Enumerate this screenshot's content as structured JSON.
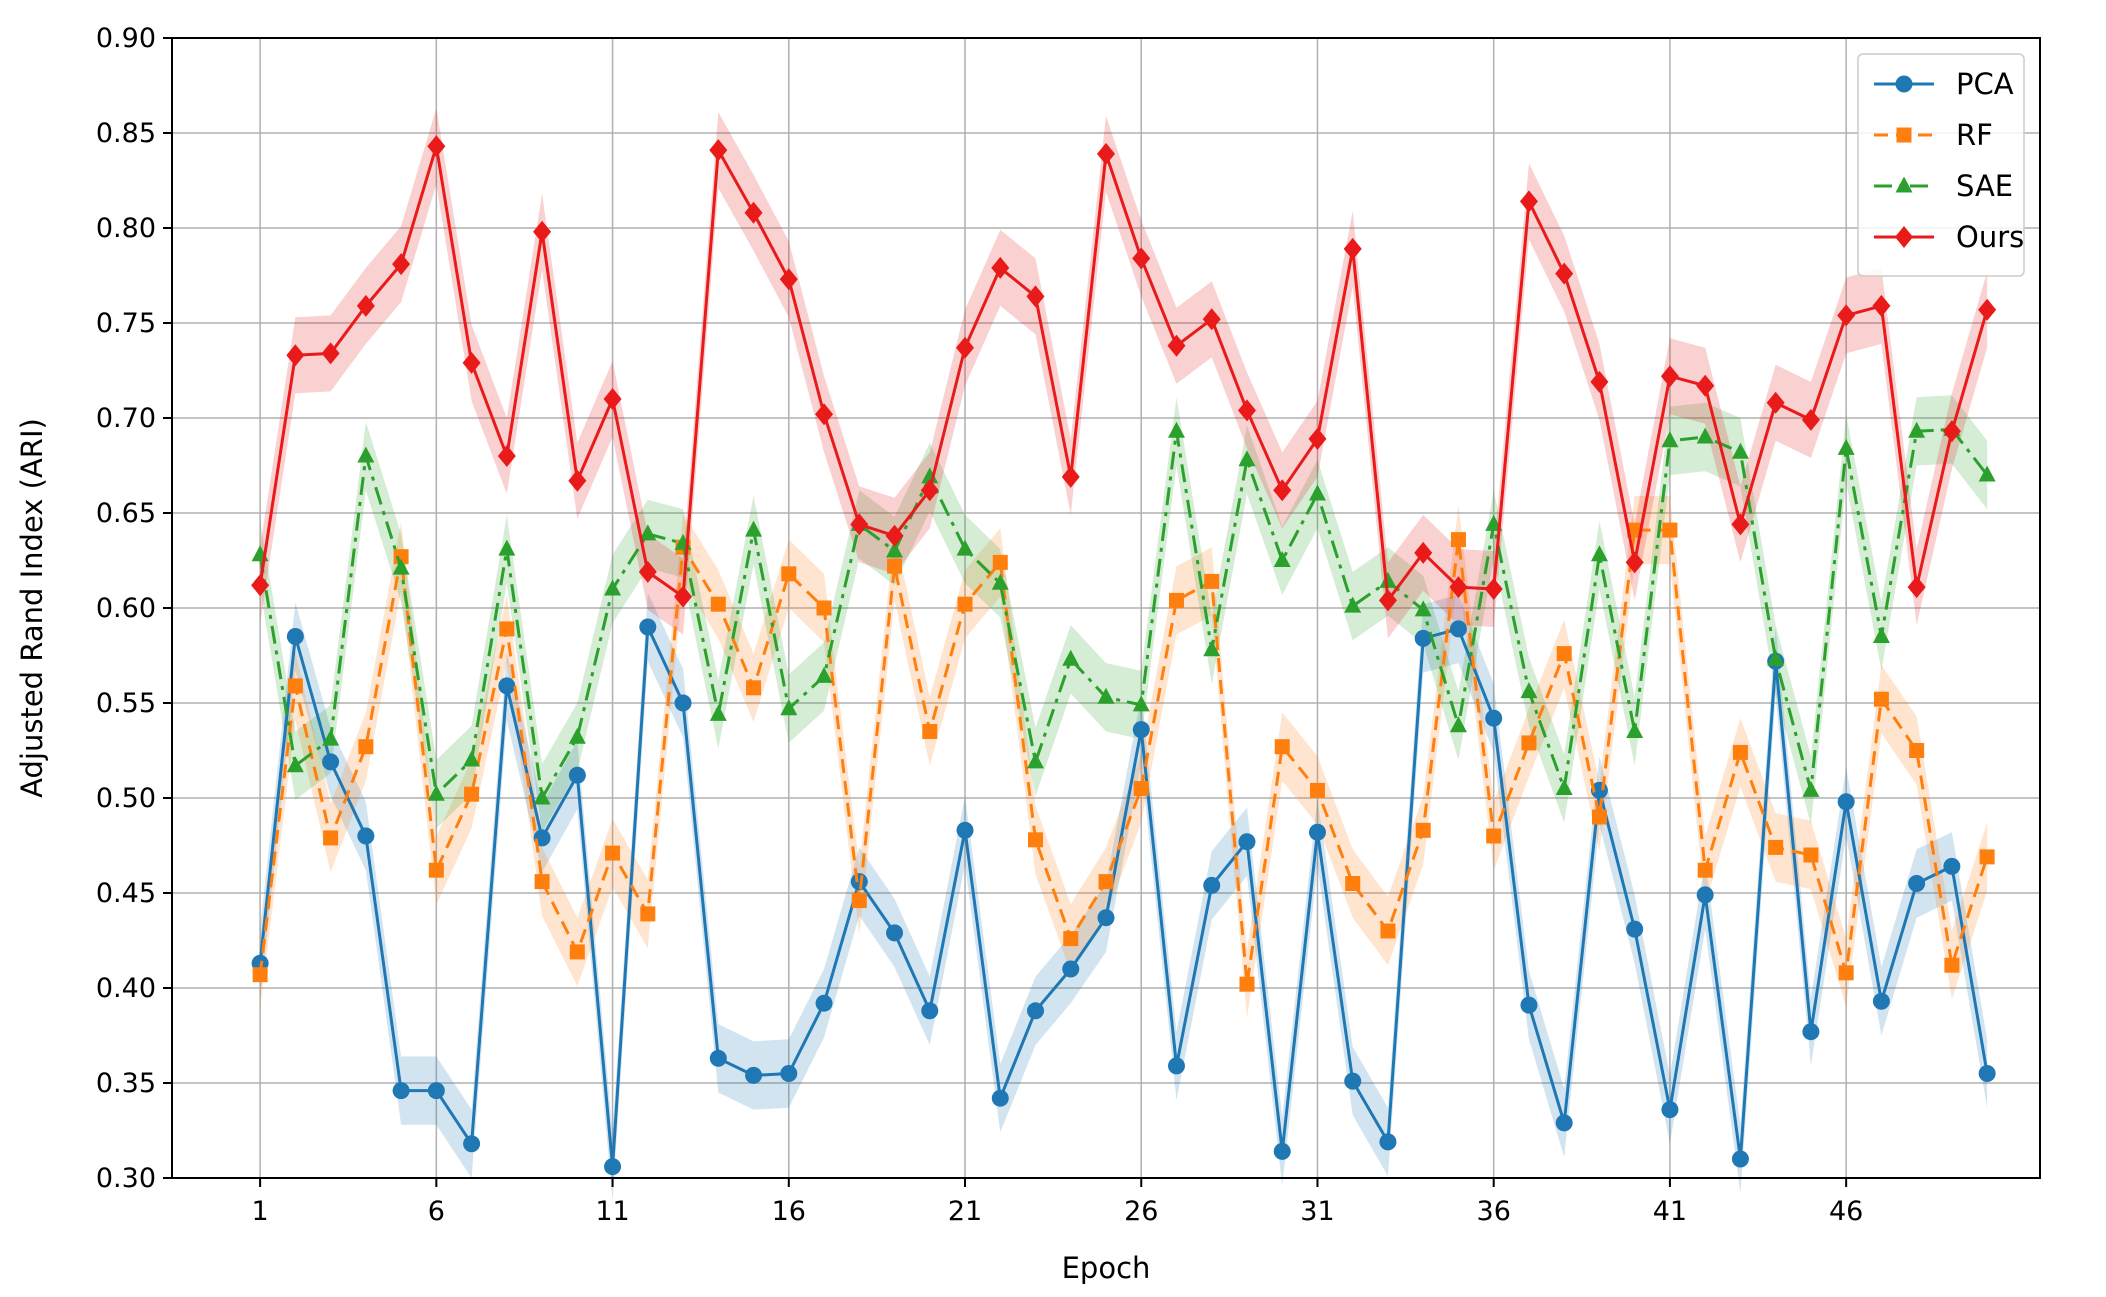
{
  "chart_data": {
    "type": "line",
    "title": "",
    "xlabel": "Epoch",
    "ylabel": "Adjusted Rand Index (ARI)",
    "xlim": [
      -1.5,
      51.5
    ],
    "ylim": [
      0.3,
      0.9
    ],
    "x_ticks": [
      "1",
      "6",
      "11",
      "16",
      "21",
      "26",
      "31",
      "36",
      "41",
      "46"
    ],
    "y_ticks": [
      "0.30",
      "0.35",
      "0.40",
      "0.45",
      "0.50",
      "0.55",
      "0.60",
      "0.65",
      "0.70",
      "0.75",
      "0.80",
      "0.85",
      "0.90"
    ],
    "grid": true,
    "legend_position": "top-right",
    "x": [
      1,
      2,
      3,
      4,
      5,
      6,
      7,
      8,
      9,
      10,
      11,
      12,
      13,
      14,
      15,
      16,
      17,
      18,
      19,
      20,
      21,
      22,
      23,
      24,
      25,
      26,
      27,
      28,
      29,
      30,
      31,
      32,
      33,
      34,
      35,
      36,
      37,
      38,
      39,
      40,
      41,
      42,
      43,
      44,
      45,
      46,
      47,
      48,
      49,
      50
    ],
    "series": [
      {
        "name": "PCA",
        "color": "#1f77b4",
        "linestyle": "solid",
        "marker": "circle",
        "values": [
          0.413,
          0.585,
          0.519,
          0.48,
          0.346,
          0.346,
          0.318,
          0.559,
          0.479,
          0.512,
          0.306,
          0.59,
          0.55,
          0.363,
          0.354,
          0.355,
          0.392,
          0.456,
          0.429,
          0.388,
          0.483,
          0.342,
          0.388,
          0.41,
          0.437,
          0.536,
          0.359,
          0.454,
          0.477,
          0.314,
          0.482,
          0.351,
          0.319,
          0.584,
          0.589,
          0.542,
          0.391,
          0.329,
          0.504,
          0.431,
          0.336,
          0.449,
          0.31,
          0.572,
          0.377,
          0.498,
          0.393,
          0.455,
          0.464,
          0.355
        ],
        "band": 0.018
      },
      {
        "name": "RF",
        "color": "#ff7f0e",
        "linestyle": "dashed",
        "marker": "square",
        "values": [
          0.407,
          0.559,
          0.479,
          0.527,
          0.627,
          0.462,
          0.502,
          0.589,
          0.456,
          0.419,
          0.471,
          0.439,
          0.632,
          0.602,
          0.558,
          0.618,
          0.6,
          0.446,
          0.622,
          0.535,
          0.602,
          0.624,
          0.478,
          0.426,
          0.456,
          0.505,
          0.604,
          0.614,
          0.402,
          0.527,
          0.504,
          0.455,
          0.43,
          0.483,
          0.636,
          0.48,
          0.529,
          0.576,
          0.49,
          0.641,
          0.641,
          0.462,
          0.524,
          0.474,
          0.47,
          0.408,
          0.552,
          0.525,
          0.412,
          0.469
        ],
        "band": 0.018
      },
      {
        "name": "SAE",
        "color": "#2ca02c",
        "linestyle": "dashdot",
        "marker": "triangle",
        "values": [
          0.628,
          0.517,
          0.531,
          0.68,
          0.621,
          0.502,
          0.52,
          0.631,
          0.5,
          0.532,
          0.61,
          0.639,
          0.634,
          0.544,
          0.641,
          0.547,
          0.564,
          0.644,
          0.63,
          0.669,
          0.631,
          0.613,
          0.519,
          0.573,
          0.553,
          0.549,
          0.693,
          0.578,
          0.678,
          0.625,
          0.66,
          0.601,
          0.614,
          0.599,
          0.538,
          0.644,
          0.556,
          0.505,
          0.628,
          0.535,
          0.688,
          0.69,
          0.682,
          0.573,
          0.504,
          0.684,
          0.585,
          0.693,
          0.694,
          0.67
        ],
        "band": 0.018
      },
      {
        "name": "Ours",
        "color": "#e81a1a",
        "linestyle": "solid",
        "marker": "diamond",
        "values": [
          0.612,
          0.733,
          0.734,
          0.759,
          0.781,
          0.843,
          0.729,
          0.68,
          0.798,
          0.667,
          0.71,
          0.619,
          0.606,
          0.841,
          0.808,
          0.773,
          0.702,
          0.644,
          0.638,
          0.662,
          0.737,
          0.779,
          0.764,
          0.669,
          0.839,
          0.784,
          0.738,
          0.752,
          0.704,
          0.662,
          0.689,
          0.789,
          0.604,
          0.629,
          0.611,
          0.61,
          0.814,
          0.776,
          0.719,
          0.624,
          0.722,
          0.717,
          0.644,
          0.708,
          0.699,
          0.754,
          0.759,
          0.611,
          0.693,
          0.757
        ],
        "band": 0.02
      }
    ]
  }
}
